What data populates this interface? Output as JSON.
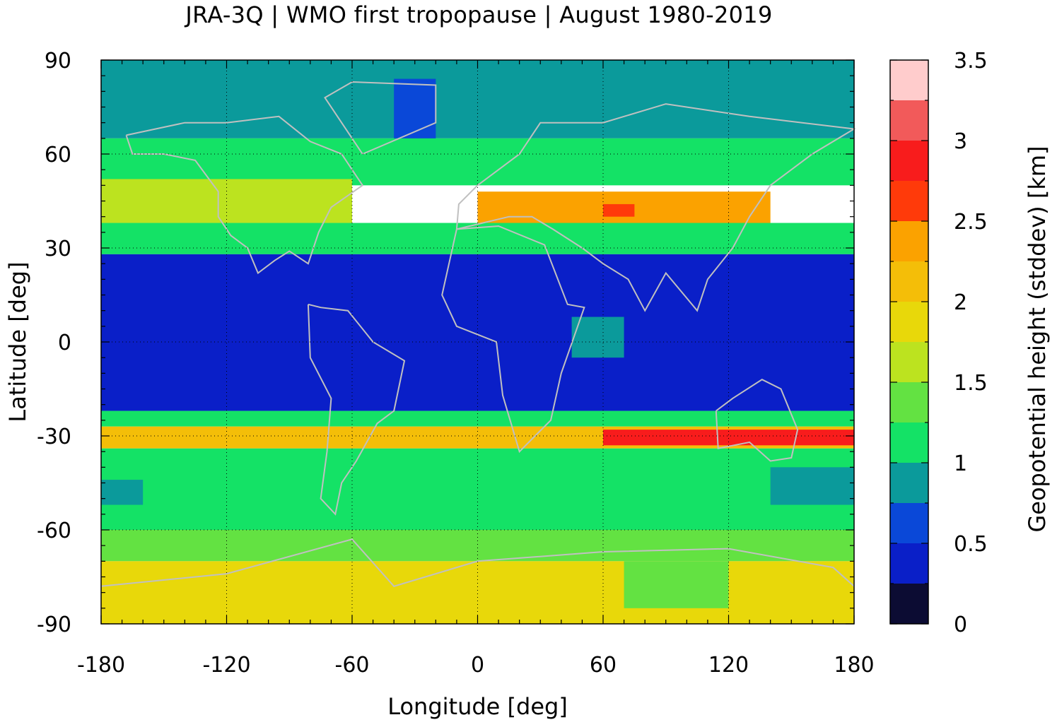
{
  "chart_data": {
    "type": "heatmap",
    "title": "JRA-3Q | WMO first tropopause | August 1980-2019",
    "xlabel": "Longitude [deg]",
    "ylabel": "Latitude [deg]",
    "colorbar_label": "Geopotential height (stddev) [km]",
    "xlim": [
      -180,
      180
    ],
    "ylim": [
      -90,
      90
    ],
    "xticks": [
      "-180",
      "-120",
      "-60",
      "0",
      "60",
      "120",
      "180"
    ],
    "yticks": [
      "90",
      "60",
      "30",
      "0",
      "-30",
      "-60",
      "-90"
    ],
    "colorbar_range": [
      0,
      3.5
    ],
    "colorbar_ticks": [
      "0",
      "0.5",
      "1",
      "1.5",
      "2",
      "2.5",
      "3",
      "3.5"
    ],
    "grid": true,
    "colorbar_levels": [
      {
        "from": 0.0,
        "to": 0.25,
        "color": "#0c0c33"
      },
      {
        "from": 0.25,
        "to": 0.5,
        "color": "#0a1fc8"
      },
      {
        "from": 0.5,
        "to": 0.75,
        "color": "#0a48d8"
      },
      {
        "from": 0.75,
        "to": 1.0,
        "color": "#0b9a9b"
      },
      {
        "from": 1.0,
        "to": 1.25,
        "color": "#14e266"
      },
      {
        "from": 1.25,
        "to": 1.5,
        "color": "#63e242"
      },
      {
        "from": 1.5,
        "to": 1.75,
        "color": "#bce31f"
      },
      {
        "from": 1.75,
        "to": 2.0,
        "color": "#e8d80a"
      },
      {
        "from": 2.0,
        "to": 2.25,
        "color": "#f4be08"
      },
      {
        "from": 2.25,
        "to": 2.5,
        "color": "#fba200"
      },
      {
        "from": 2.5,
        "to": 2.75,
        "color": "#ff3a0a"
      },
      {
        "from": 2.75,
        "to": 3.0,
        "color": "#f81c1c"
      },
      {
        "from": 3.0,
        "to": 3.25,
        "color": "#f25a5a"
      },
      {
        "from": 3.25,
        "to": 3.5,
        "color": "#ffcccc"
      }
    ],
    "field_regions": [
      {
        "lat": [
          65,
          90
        ],
        "lon": [
          -180,
          180
        ],
        "value": 0.9
      },
      {
        "lat": [
          60,
          84
        ],
        "lon": [
          -40,
          -20
        ],
        "value": 0.6
      },
      {
        "lat": [
          50,
          65
        ],
        "lon": [
          -180,
          180
        ],
        "value": 1.1
      },
      {
        "lat": [
          38,
          52
        ],
        "lon": [
          -180,
          -60
        ],
        "value": 1.6
      },
      {
        "lat": [
          35,
          48
        ],
        "lon": [
          0,
          140
        ],
        "value": 2.3
      },
      {
        "lat": [
          40,
          44
        ],
        "lon": [
          60,
          75
        ],
        "value": 2.6
      },
      {
        "lat": [
          28,
          38
        ],
        "lon": [
          -180,
          180
        ],
        "value": 1.0
      },
      {
        "lat": [
          -22,
          28
        ],
        "lon": [
          -180,
          180
        ],
        "value": 0.4
      },
      {
        "lat": [
          -5,
          8
        ],
        "lon": [
          45,
          70
        ],
        "value": 0.9
      },
      {
        "lat": [
          -27,
          -22
        ],
        "lon": [
          -180,
          180
        ],
        "value": 1.2
      },
      {
        "lat": [
          -34,
          -27
        ],
        "lon": [
          -180,
          180
        ],
        "value": 2.0
      },
      {
        "lat": [
          -33,
          -28
        ],
        "lon": [
          60,
          180
        ],
        "value": 2.8
      },
      {
        "lat": [
          -60,
          -34
        ],
        "lon": [
          -180,
          180
        ],
        "value": 1.2
      },
      {
        "lat": [
          -52,
          -44
        ],
        "lon": [
          -180,
          -160
        ],
        "value": 0.9
      },
      {
        "lat": [
          -52,
          -40
        ],
        "lon": [
          140,
          180
        ],
        "value": 0.9
      },
      {
        "lat": [
          -70,
          -60
        ],
        "lon": [
          -180,
          180
        ],
        "value": 1.4
      },
      {
        "lat": [
          -90,
          -70
        ],
        "lon": [
          -180,
          180
        ],
        "value": 1.9
      },
      {
        "lat": [
          -85,
          -70
        ],
        "lon": [
          70,
          120
        ],
        "value": 1.4
      }
    ]
  }
}
